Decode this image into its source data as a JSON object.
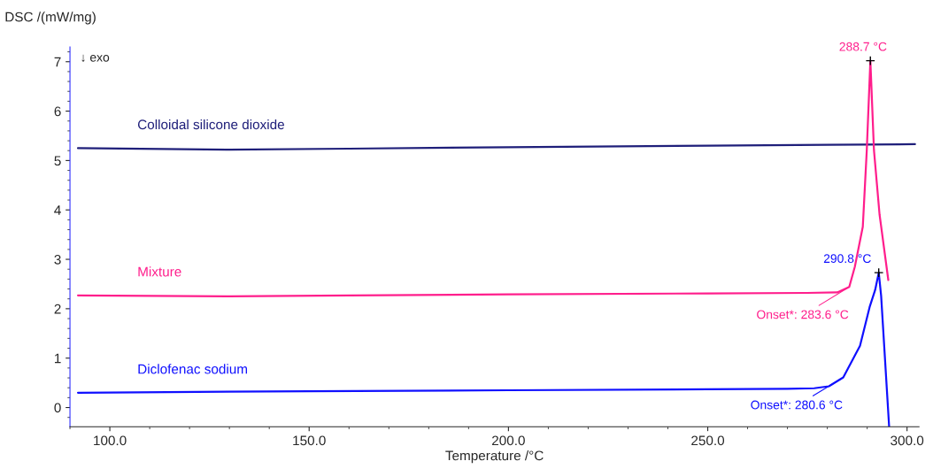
{
  "chart_data": {
    "type": "line",
    "xlabel": "Temperature /°C",
    "ylabel": "DSC /(mW/mg)",
    "xlim": [
      90,
      303
    ],
    "ylim": [
      -0.39,
      7.3
    ],
    "xticks": [
      {
        "value": 100,
        "label": "100.0"
      },
      {
        "value": 150,
        "label": "150.0"
      },
      {
        "value": 200,
        "label": "200.0"
      },
      {
        "value": 250,
        "label": "250.0"
      },
      {
        "value": 300,
        "label": "300.0"
      }
    ],
    "yticks": [
      0,
      1,
      2,
      3,
      4,
      5,
      6,
      7
    ],
    "grid": false,
    "legend": false,
    "marker": "none",
    "line_style": "solid",
    "series": [
      {
        "name": "Colloidal silicone dioxide",
        "color": "#1f1f7a",
        "x": [
          92,
          130,
          160,
          200,
          250,
          280,
          302
        ],
        "values": [
          5.25,
          5.22,
          5.24,
          5.27,
          5.3,
          5.32,
          5.33
        ]
      },
      {
        "name": "Mixture",
        "color": "#ff1e8c",
        "x": [
          92,
          130,
          160,
          200,
          250,
          275,
          282.5,
          285.5,
          286.9,
          288.9,
          289.9,
          290.8,
          291.7,
          293.1,
          295.3
        ],
        "values": [
          2.27,
          2.25,
          2.27,
          2.29,
          2.31,
          2.32,
          2.33,
          2.44,
          2.85,
          3.66,
          5.21,
          7.02,
          5.21,
          3.91,
          2.58
        ]
      },
      {
        "name": "Diclofenac sodium",
        "color": "#1010ff",
        "x": [
          92,
          150,
          200,
          250,
          270,
          276.7,
          280.4,
          284.0,
          288.2,
          290.6,
          292.0,
          292.9,
          293.5,
          295.5
        ],
        "values": [
          0.3,
          0.33,
          0.35,
          0.37,
          0.38,
          0.39,
          0.43,
          0.61,
          1.25,
          2.03,
          2.38,
          2.73,
          2.26,
          -0.38
        ]
      }
    ],
    "annotations": [
      "↓ exo",
      {
        "text": "288.7 °C",
        "x": 290.8,
        "y": 7.02
      },
      {
        "text": "Onset*: 283.6 °C",
        "x": 285.5,
        "y": 2.44
      },
      {
        "text": "290.8 °C",
        "x": 292.9,
        "y": 2.73
      },
      {
        "text": "Onset*: 280.6 °C",
        "x": 284.0,
        "y": 0.61
      }
    ]
  }
}
